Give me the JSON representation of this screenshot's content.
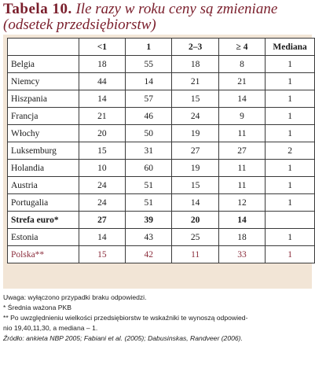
{
  "title": {
    "label": "Tabela 10.",
    "text": "Ile razy w roku ceny są zmieniane (odsetek przedsiębiorstw)"
  },
  "table": {
    "headers": [
      "",
      "<1",
      "1",
      "2–3",
      "≥ 4",
      "Mediana"
    ],
    "rows": [
      {
        "name": "Belgia",
        "cells": [
          "18",
          "55",
          "18",
          "8",
          "1"
        ]
      },
      {
        "name": "Niemcy",
        "cells": [
          "44",
          "14",
          "21",
          "21",
          "1"
        ]
      },
      {
        "name": "Hiszpania",
        "cells": [
          "14",
          "57",
          "15",
          "14",
          "1"
        ]
      },
      {
        "name": "Francja",
        "cells": [
          "21",
          "46",
          "24",
          "9",
          "1"
        ]
      },
      {
        "name": "Włochy",
        "cells": [
          "20",
          "50",
          "19",
          "11",
          "1"
        ]
      },
      {
        "name": "Luksemburg",
        "cells": [
          "15",
          "31",
          "27",
          "27",
          "2"
        ]
      },
      {
        "name": "Holandia",
        "cells": [
          "10",
          "60",
          "19",
          "11",
          "1"
        ]
      },
      {
        "name": "Austria",
        "cells": [
          "24",
          "51",
          "15",
          "11",
          "1"
        ]
      },
      {
        "name": "Portugalia",
        "cells": [
          "24",
          "51",
          "14",
          "12",
          "1"
        ]
      },
      {
        "name": "Strefa euro*",
        "cells": [
          "27",
          "39",
          "20",
          "14",
          ""
        ]
      },
      {
        "name": "Estonia",
        "cells": [
          "14",
          "43",
          "25",
          "18",
          "1"
        ]
      },
      {
        "name": "Polska**",
        "cells": [
          "15",
          "42",
          "11",
          "33",
          "1"
        ]
      }
    ]
  },
  "notes": {
    "line1": "Uwaga: wyłączono przypadki braku odpowiedzi.",
    "line2": "* Średnia ważona PKB",
    "line3": "** Po uwzględnieniu wielkości przedsiębiorstw te wskaźniki te wynoszą odpowied-",
    "line4": "nio 19,40,11,30, a mediana – 1.",
    "source": "Źródło: ankieta NBP 2005; Fabiani et al. (2005); Dabusinskas, Randveer (2006)."
  },
  "colors": {
    "title": "#7a1e2b",
    "panel": "#f2e5d6",
    "polska_row": "#8b2c3b"
  }
}
